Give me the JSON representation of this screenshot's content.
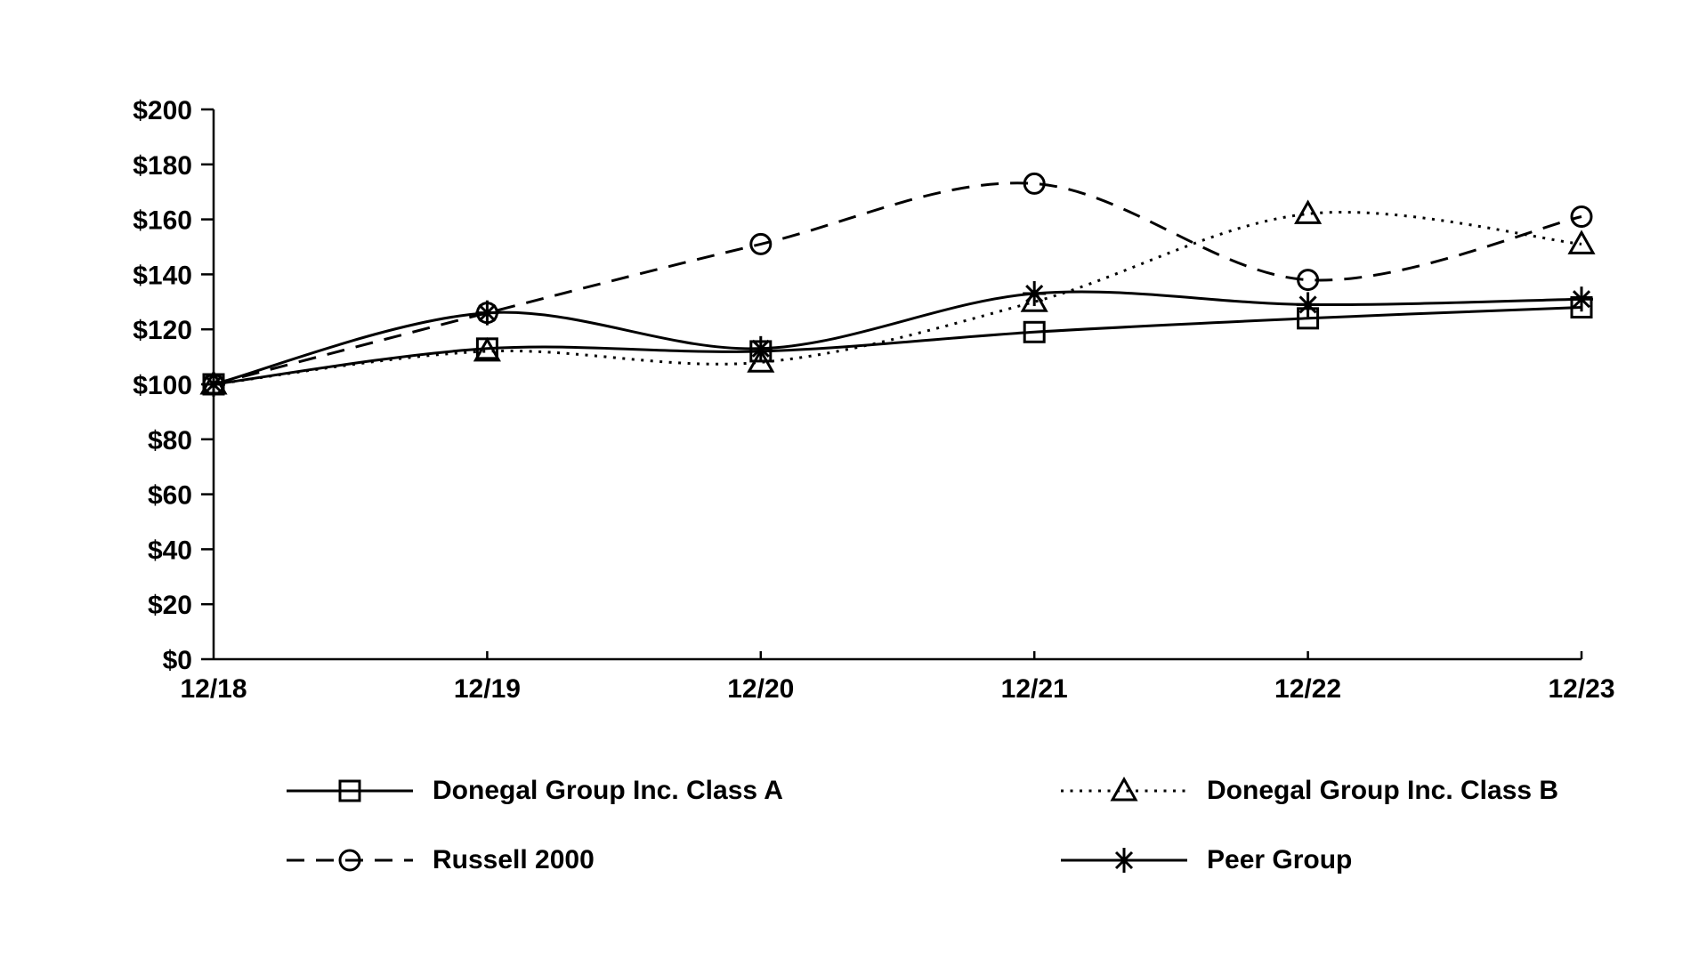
{
  "chart_data": {
    "type": "line",
    "title": "",
    "x_labels": [
      "12/18",
      "12/19",
      "12/20",
      "12/21",
      "12/22",
      "12/23"
    ],
    "xlabel": "",
    "ylabel": "",
    "ylim": [
      0,
      200
    ],
    "y_tick_step": 20,
    "y_tick_labels": [
      "$0",
      "$20",
      "$40",
      "$60",
      "$80",
      "$100",
      "$120",
      "$140",
      "$160",
      "$180",
      "$200"
    ],
    "grid": false,
    "legend_position": "bottom-two-columns",
    "colors": {
      "stroke": "#000000",
      "background": "#ffffff"
    },
    "series": [
      {
        "name": "Donegal Group Inc. Class A",
        "marker": "square",
        "line_style": "solid",
        "values": [
          100,
          113,
          112,
          119,
          124,
          128
        ]
      },
      {
        "name": "Donegal Group Inc. Class B",
        "marker": "triangle",
        "line_style": "dotted",
        "values": [
          100,
          112,
          108,
          130,
          162,
          151
        ]
      },
      {
        "name": "Russell 2000",
        "marker": "circle",
        "line_style": "dashed",
        "values": [
          100,
          126,
          151,
          173,
          138,
          161
        ]
      },
      {
        "name": "Peer Group",
        "marker": "asterisk",
        "line_style": "solid",
        "values": [
          100,
          126,
          113,
          133,
          129,
          131
        ]
      }
    ]
  }
}
